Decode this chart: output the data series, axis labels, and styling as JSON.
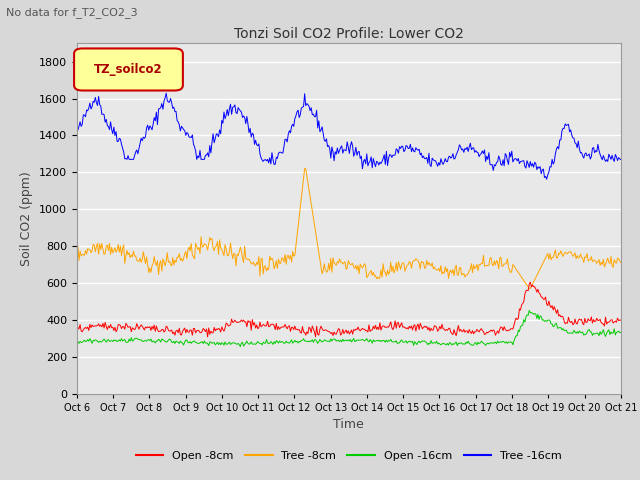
{
  "title": "Tonzi Soil CO2 Profile: Lower CO2",
  "top_label": "No data for f_T2_CO2_3",
  "ylabel": "Soil CO2 (ppm)",
  "xlabel": "Time",
  "legend_label": "TZ_soilco2",
  "ylim": [
    0,
    1900
  ],
  "yticks": [
    0,
    200,
    400,
    600,
    800,
    1000,
    1200,
    1400,
    1600,
    1800
  ],
  "background_color": "#d8d8d8",
  "plot_bg_color": "#e8e8e8",
  "series": {
    "open_8cm": {
      "label": "Open -8cm",
      "color": "#ff0000"
    },
    "tree_8cm": {
      "label": "Tree -8cm",
      "color": "#ffa500"
    },
    "open_16cm": {
      "label": "Open -16cm",
      "color": "#00cc00"
    },
    "tree_16cm": {
      "label": "Tree -16cm",
      "color": "#0000ff"
    }
  },
  "n_points": 500,
  "x_start": 6.0,
  "x_end": 21.0,
  "xtick_labels": [
    "Oct 6",
    "Oct 7",
    "Oct 8",
    "Oct 9",
    "Oct 10",
    "Oct 11",
    "Oct 12",
    "Oct 13",
    "Oct 14",
    "Oct 15",
    "Oct 16",
    "Oct 17",
    "Oct 18",
    "Oct 19",
    "Oct 20",
    "Oct 21"
  ],
  "xtick_positions": [
    6,
    7,
    8,
    9,
    10,
    11,
    12,
    13,
    14,
    15,
    16,
    17,
    18,
    19,
    20,
    21
  ]
}
